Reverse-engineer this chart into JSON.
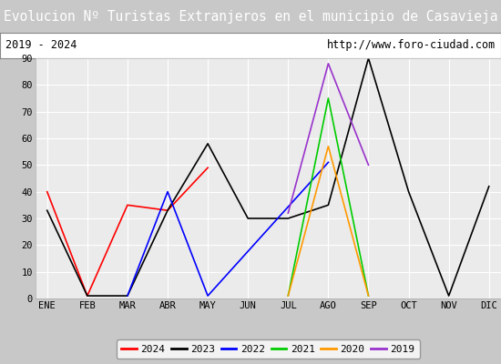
{
  "title": "Evolucion Nº Turistas Extranjeros en el municipio de Casavieja",
  "subtitle_left": "2019 - 2024",
  "subtitle_right": "http://www.foro-ciudad.com",
  "title_bg": "#4d7ebf",
  "title_color": "white",
  "months": [
    "ENE",
    "FEB",
    "MAR",
    "ABR",
    "MAY",
    "JUN",
    "JUL",
    "AGO",
    "SEP",
    "OCT",
    "NOV",
    "DIC"
  ],
  "ylim": [
    0,
    90
  ],
  "yticks": [
    0,
    10,
    20,
    30,
    40,
    50,
    60,
    70,
    80,
    90
  ],
  "series": {
    "2024": {
      "color": "#ff0000",
      "values": [
        40,
        1,
        35,
        33,
        49,
        null,
        null,
        null,
        null,
        null,
        null,
        null
      ]
    },
    "2023": {
      "color": "#000000",
      "values": [
        33,
        1,
        1,
        33,
        58,
        30,
        30,
        35,
        90,
        40,
        1,
        42
      ]
    },
    "2022": {
      "color": "#0000ff",
      "values": [
        null,
        null,
        1,
        40,
        1,
        null,
        null,
        51,
        null,
        null,
        null,
        null
      ]
    },
    "2021": {
      "color": "#00cc00",
      "values": [
        null,
        null,
        null,
        null,
        null,
        null,
        1,
        75,
        1,
        null,
        null,
        null
      ]
    },
    "2020": {
      "color": "#ff9900",
      "values": [
        null,
        null,
        null,
        null,
        null,
        null,
        1,
        57,
        1,
        null,
        null,
        null
      ]
    },
    "2019": {
      "color": "#9933cc",
      "values": [
        null,
        null,
        null,
        null,
        null,
        null,
        32,
        88,
        50,
        null,
        null,
        null
      ]
    }
  },
  "legend_order": [
    "2024",
    "2023",
    "2022",
    "2021",
    "2020",
    "2019"
  ],
  "grid_color": "#d8d8d8",
  "plot_bg": "#ebebeb"
}
